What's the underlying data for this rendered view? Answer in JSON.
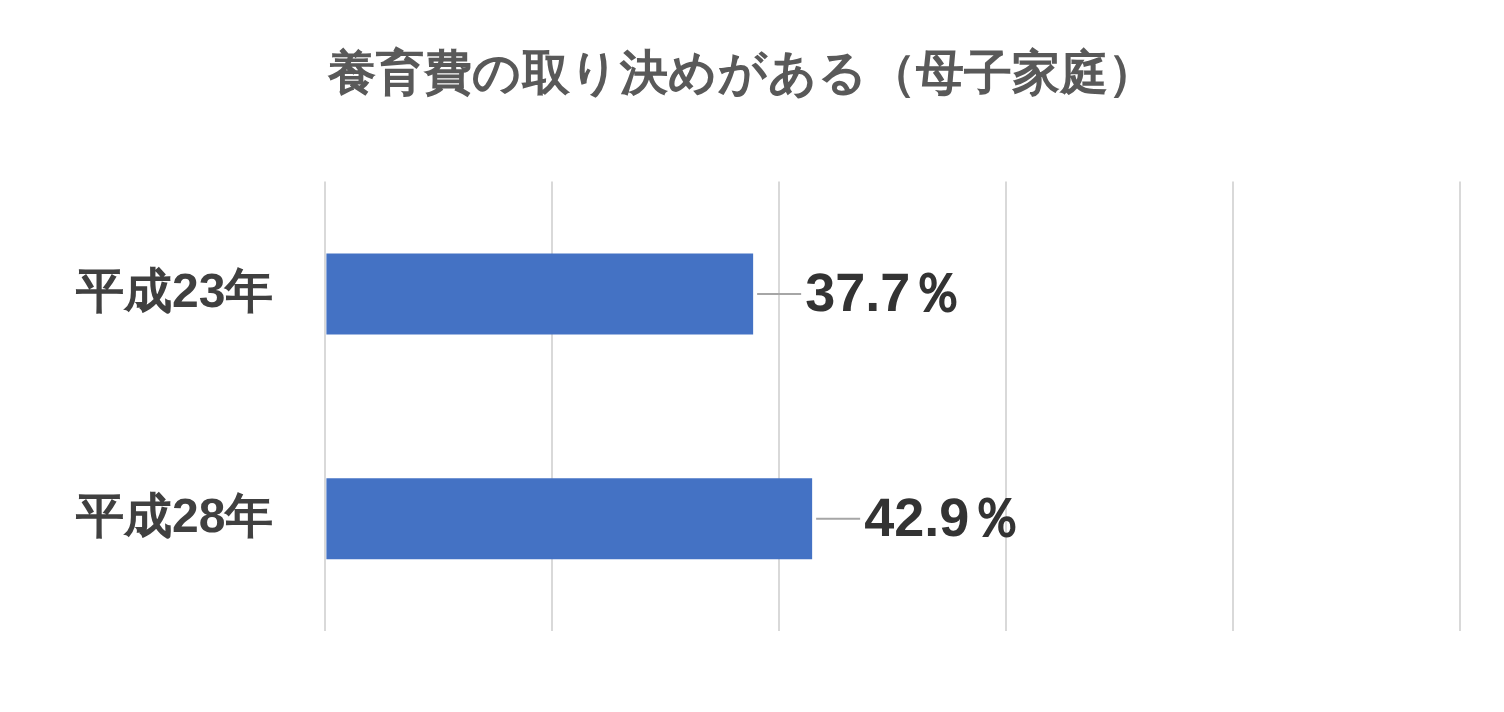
{
  "chart_data": {
    "type": "bar",
    "orientation": "horizontal",
    "title": "養育費の取り決めがある（母子家庭）",
    "categories": [
      "平成23年",
      "平成28年"
    ],
    "values": [
      37.7,
      42.9
    ],
    "value_labels": [
      "37.7％",
      "42.9％"
    ],
    "color": "#4472c4",
    "xlim": [
      0,
      100
    ],
    "xticks": [
      {
        "value": 0,
        "label": null
      },
      {
        "value": 20,
        "label": null
      },
      {
        "value": 40,
        "label": null
      },
      {
        "value": 60,
        "label": null
      },
      {
        "value": 80,
        "label": null
      },
      {
        "value": 100,
        "label": null
      }
    ],
    "tick_labels": "y",
    "grid": "x",
    "legend": false
  }
}
